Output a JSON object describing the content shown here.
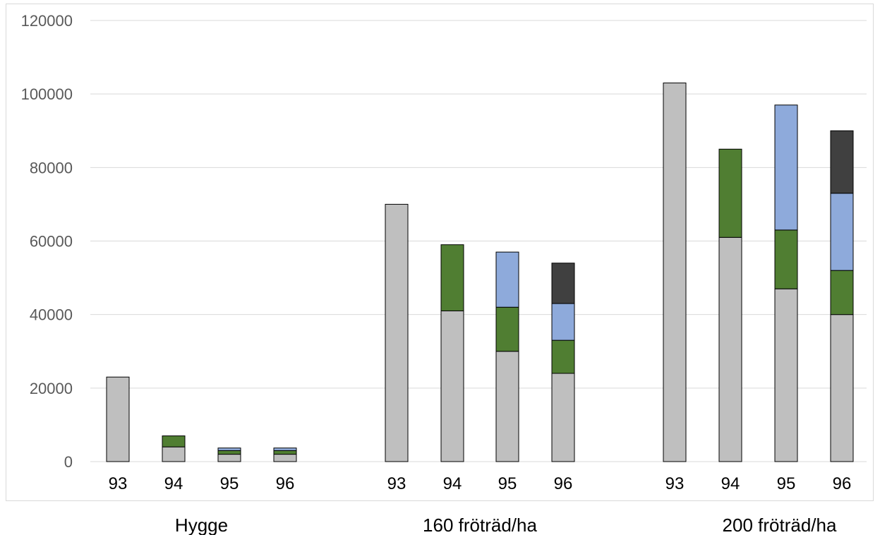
{
  "chart_data": {
    "type": "bar",
    "stacked": true,
    "ylim": [
      0,
      120000
    ],
    "yticks": [
      0,
      20000,
      40000,
      60000,
      80000,
      100000,
      120000
    ],
    "grid": true,
    "groups": [
      {
        "label": "Hygge",
        "bars": [
          {
            "x_label": "93",
            "segments": [
              23000
            ]
          },
          {
            "x_label": "94",
            "segments": [
              4000,
              3000
            ]
          },
          {
            "x_label": "95",
            "segments": [
              2000,
              1000,
              700
            ]
          },
          {
            "x_label": "96",
            "segments": [
              2000,
              1000,
              700
            ]
          }
        ]
      },
      {
        "label": "160 fröträd/ha",
        "bars": [
          {
            "x_label": "93",
            "segments": [
              70000
            ]
          },
          {
            "x_label": "94",
            "segments": [
              41000,
              18000
            ]
          },
          {
            "x_label": "95",
            "segments": [
              30000,
              12000,
              15000
            ]
          },
          {
            "x_label": "96",
            "segments": [
              24000,
              9000,
              10000,
              11000
            ]
          }
        ]
      },
      {
        "label": "200 fröträd/ha",
        "bars": [
          {
            "x_label": "93",
            "segments": [
              103000
            ]
          },
          {
            "x_label": "94",
            "segments": [
              61000,
              24000
            ]
          },
          {
            "x_label": "95",
            "segments": [
              47000,
              16000,
              34000
            ]
          },
          {
            "x_label": "96",
            "segments": [
              40000,
              12000,
              21000,
              17000
            ]
          }
        ]
      }
    ],
    "segment_colors": [
      "#bfbfbf",
      "#507e32",
      "#8eaadb",
      "#404040"
    ]
  }
}
